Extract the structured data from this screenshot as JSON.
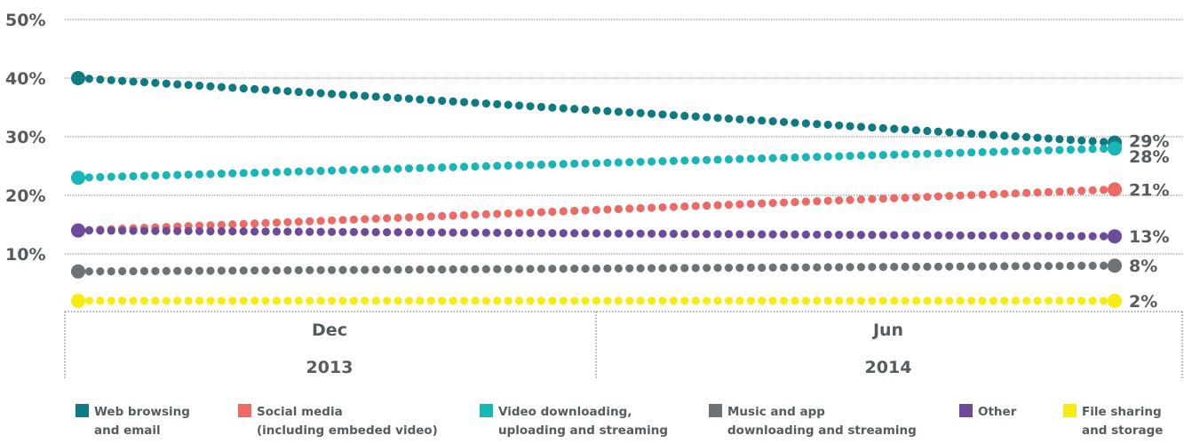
{
  "chart_data": {
    "type": "line",
    "title": "",
    "xlabel": "",
    "ylabel": "",
    "ylim": [
      0,
      50
    ],
    "y_ticks": [
      "10%",
      "20%",
      "30%",
      "40%",
      "50%"
    ],
    "y_tick_values": [
      10,
      20,
      30,
      40,
      50
    ],
    "grid": true,
    "x_periods": [
      {
        "month": "Dec",
        "year": "2013"
      },
      {
        "month": "Jun",
        "year": "2014"
      }
    ],
    "x": [
      "Dec 2013",
      "Jun 2014"
    ],
    "legend_position": "bottom",
    "series": [
      {
        "name_lines": [
          "Web browsing",
          "and email"
        ],
        "color": "#0e7a82",
        "values": [
          40,
          29
        ],
        "end_label": "29%"
      },
      {
        "name_lines": [
          "Social media",
          "(including embeded video)"
        ],
        "color": "#ee6a64",
        "values": [
          14,
          21
        ],
        "end_label": "21%"
      },
      {
        "name_lines": [
          "Video downloading,",
          "uploading and streaming"
        ],
        "color": "#19b6b8",
        "values": [
          23,
          28
        ],
        "end_label": "28%"
      },
      {
        "name_lines": [
          "Music and app",
          "downloading and streaming"
        ],
        "color": "#6d7275",
        "values": [
          7,
          8
        ],
        "end_label": "8%"
      },
      {
        "name_lines": [
          "Other"
        ],
        "color": "#6c4c9a",
        "values": [
          14,
          13
        ],
        "end_label": "13%"
      },
      {
        "name_lines": [
          "File sharing",
          "and storage"
        ],
        "color": "#f6ec14",
        "values": [
          2,
          2
        ],
        "end_label": "2%"
      }
    ]
  }
}
